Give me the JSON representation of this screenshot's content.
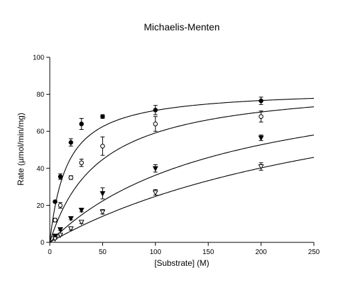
{
  "chart_data": {
    "type": "scatter",
    "title": "Michaelis-Menten",
    "xlabel": "[Substrate] (M)",
    "ylabel": "Rate (µmol/min/mg)",
    "xlim": [
      0,
      250
    ],
    "ylim": [
      0,
      100
    ],
    "x_ticks": [
      0,
      50,
      100,
      150,
      200,
      250
    ],
    "y_ticks": [
      0,
      20,
      40,
      60,
      80,
      100
    ],
    "grid": false,
    "legend": "none",
    "series": [
      {
        "marker": "filled-circle",
        "fit": {
          "model": "michaelis-menten",
          "vmax": 82.9,
          "km": 16.3
        },
        "x": [
          5,
          10,
          20,
          30,
          50,
          100,
          200
        ],
        "y": [
          22,
          35.5,
          54,
          64,
          68,
          71.5,
          76.5
        ],
        "err": [
          0.5,
          1.5,
          2,
          3,
          1,
          2.5,
          2
        ]
      },
      {
        "marker": "open-circle",
        "fit": {
          "model": "michaelis-menten",
          "vmax": 87.1,
          "km": 47.3
        },
        "x": [
          5,
          10,
          20,
          30,
          50,
          100,
          200
        ],
        "y": [
          12,
          20,
          35,
          43,
          52,
          64,
          68
        ],
        "err": [
          1,
          1.5,
          1,
          2,
          5,
          4,
          3
        ]
      },
      {
        "marker": "filled-triangle-down",
        "fit": {
          "model": "michaelis-menten",
          "vmax": 96.5,
          "km": 166
        },
        "x": [
          5,
          10,
          20,
          30,
          50,
          100,
          200
        ],
        "y": [
          3.5,
          7,
          13,
          17.5,
          26.5,
          40,
          56.5
        ],
        "err": [
          0.3,
          0.5,
          0.8,
          1,
          3,
          2,
          1.5
        ]
      },
      {
        "marker": "open-triangle-down",
        "fit": {
          "model": "michaelis-menten",
          "vmax": 106,
          "km": 327
        },
        "x": [
          5,
          10,
          20,
          30,
          50,
          100,
          200
        ],
        "y": [
          2,
          4,
          7.5,
          11,
          16.5,
          27,
          41
        ],
        "err": [
          0.3,
          0.5,
          0.8,
          0.8,
          1.2,
          1.5,
          2
        ]
      }
    ]
  }
}
